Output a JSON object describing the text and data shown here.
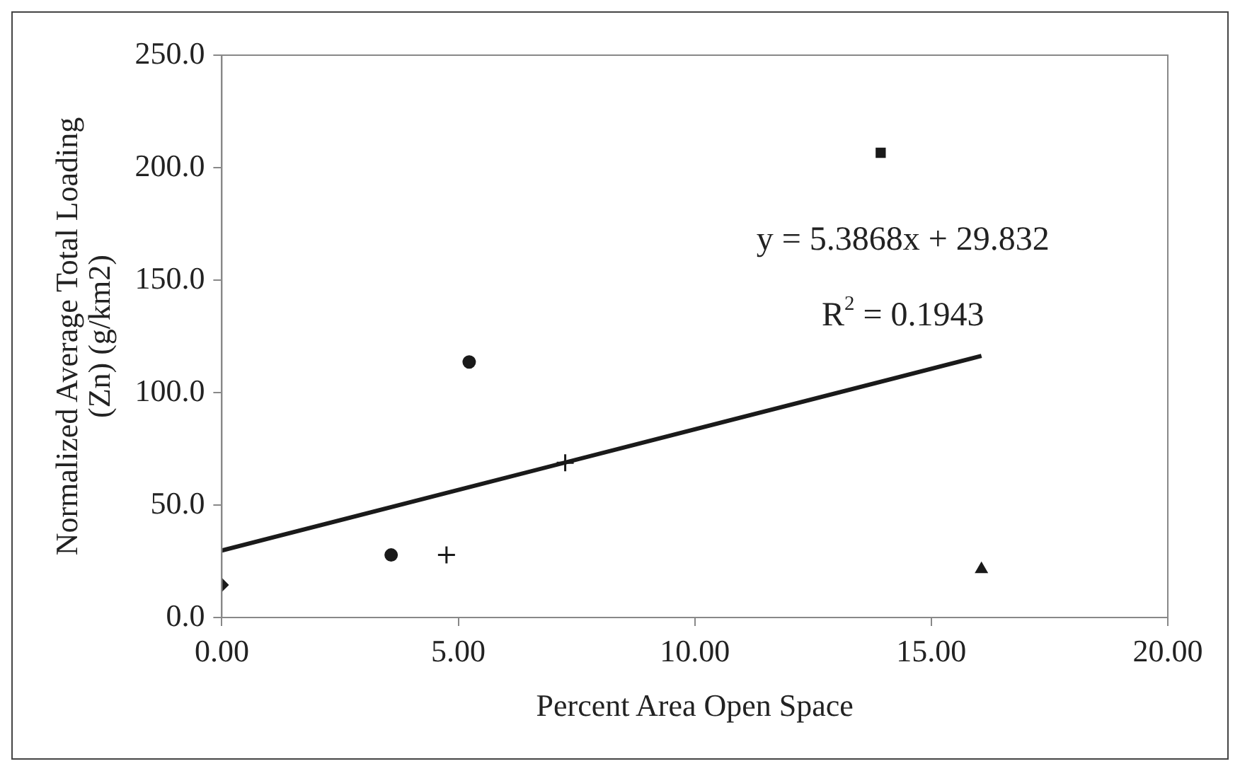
{
  "chart_data": {
    "type": "scatter",
    "xlabel": "Percent Area Open Space",
    "ylabel": "Normalized Average Total Loading (Zn) (g/km2)",
    "xlim": [
      0,
      20
    ],
    "xticks": [
      {
        "value": 0,
        "label": "0.00"
      },
      {
        "value": 5,
        "label": "5.00"
      },
      {
        "value": 10,
        "label": "10.00"
      },
      {
        "value": 15,
        "label": "15.00"
      },
      {
        "value": 20,
        "label": "20.00"
      }
    ],
    "ylim": [
      0,
      250
    ],
    "yticks": [
      {
        "value": 0,
        "label": "0.0"
      },
      {
        "value": 50,
        "label": "50.0"
      },
      {
        "value": 100,
        "label": "100.0"
      },
      {
        "value": 150,
        "label": "150.0"
      },
      {
        "value": 200,
        "label": "200.0"
      },
      {
        "value": 250,
        "label": "250.0"
      }
    ],
    "grid": false,
    "legend": false,
    "series": [
      {
        "marker": "diamond",
        "color": "#1a1a1a",
        "x": [
          0
        ],
        "values": [
          14.5
        ]
      },
      {
        "marker": "circle",
        "color": "#1a1a1a",
        "x": [
          3.58
        ],
        "values": [
          27.8
        ]
      },
      {
        "marker": "cross",
        "color": "#1a1a1a",
        "x": [
          4.75
        ],
        "values": [
          27.8
        ]
      },
      {
        "marker": "circle",
        "color": "#1a1a1a",
        "x": [
          5.23
        ],
        "values": [
          113.6
        ]
      },
      {
        "marker": "cross",
        "color": "#1a1a1a",
        "x": [
          7.26
        ],
        "values": [
          68.8
        ]
      },
      {
        "marker": "square",
        "color": "#1a1a1a",
        "x": [
          13.93
        ],
        "values": [
          206.6
        ]
      },
      {
        "marker": "triangle",
        "color": "#1a1a1a",
        "x": [
          16.06
        ],
        "values": [
          21.5
        ]
      },
      {
        "type": "line",
        "marker": "none",
        "line_style": "solid",
        "color": "#1a1a1a",
        "x": [
          0,
          16.06
        ],
        "values": [
          29.8,
          116.3
        ]
      }
    ],
    "annotations": [
      "y = 5.3868x + 29.832",
      "R$^{2}$ = 0.1943"
    ]
  }
}
